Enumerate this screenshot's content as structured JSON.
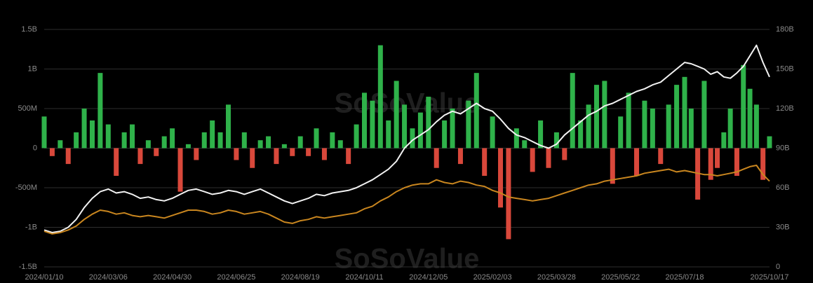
{
  "chart_data": {
    "type": "bar",
    "watermark": "SoSoValue",
    "categories": [
      "2024/01/10",
      null,
      null,
      null,
      null,
      null,
      null,
      null,
      "2024/03/06",
      null,
      null,
      null,
      null,
      null,
      null,
      null,
      "2024/04/30",
      null,
      null,
      null,
      null,
      null,
      null,
      null,
      "2024/06/25",
      null,
      null,
      null,
      null,
      null,
      null,
      null,
      "2024/08/19",
      null,
      null,
      null,
      null,
      null,
      null,
      null,
      "2024/10/11",
      null,
      null,
      null,
      null,
      null,
      null,
      null,
      "2024/12/05",
      null,
      null,
      null,
      null,
      null,
      null,
      null,
      "2025/02/03",
      null,
      null,
      null,
      null,
      null,
      null,
      null,
      "2025/03/28",
      null,
      null,
      null,
      null,
      null,
      null,
      null,
      "2025/05/22",
      null,
      null,
      null,
      null,
      null,
      null,
      null,
      "2025/07/18",
      null,
      null,
      null,
      null,
      null,
      null,
      null,
      null,
      null,
      null,
      null,
      null,
      "2025/10/17"
    ],
    "values": [
      400,
      -100,
      100,
      -200,
      200,
      500,
      350,
      950,
      300,
      -350,
      200,
      300,
      -200,
      100,
      -100,
      150,
      250,
      -550,
      50,
      -150,
      200,
      350,
      200,
      550,
      -150,
      200,
      -250,
      100,
      150,
      -200,
      50,
      -100,
      150,
      -100,
      250,
      -150,
      200,
      100,
      -200,
      300,
      700,
      600,
      1300,
      350,
      850,
      550,
      250,
      450,
      650,
      -250,
      350,
      500,
      -200,
      600,
      950,
      -350,
      400,
      -750,
      -1150,
      250,
      100,
      -300,
      350,
      -250,
      200,
      -150,
      950,
      350,
      550,
      800,
      850,
      -450,
      400,
      700,
      -350,
      600,
      500,
      -200,
      550,
      800,
      900,
      500,
      -650,
      850,
      -400,
      -250,
      200,
      500,
      -350,
      1050,
      750,
      550,
      -400,
      150
    ],
    "color": "#2fb24a",
    "negative_color": "#d9483b",
    "series": [
      {
        "type": "line",
        "axis": "y2",
        "color": "#f2f2f2",
        "values": [
          28,
          26,
          27,
          30,
          36,
          45,
          52,
          57,
          59,
          56,
          57,
          55,
          52,
          53,
          51,
          50,
          52,
          55,
          58,
          59,
          57,
          55,
          56,
          58,
          57,
          55,
          57,
          59,
          56,
          53,
          50,
          48,
          50,
          52,
          55,
          54,
          56,
          57,
          58,
          60,
          63,
          66,
          70,
          74,
          80,
          90,
          96,
          100,
          104,
          110,
          115,
          118,
          116,
          120,
          124,
          120,
          118,
          112,
          105,
          100,
          98,
          95,
          92,
          90,
          93,
          100,
          105,
          110,
          115,
          118,
          122,
          124,
          127,
          130,
          133,
          135,
          138,
          140,
          145,
          150,
          155,
          154,
          152,
          150,
          146,
          148,
          144,
          143,
          147,
          152,
          160,
          168,
          155,
          144
        ]
      },
      {
        "type": "line",
        "axis": "y2",
        "color": "#c9861f",
        "values": [
          27,
          25,
          26,
          28,
          31,
          36,
          40,
          43,
          42,
          40,
          41,
          39,
          38,
          39,
          38,
          37,
          39,
          41,
          43,
          43,
          42,
          40,
          41,
          43,
          42,
          40,
          41,
          42,
          40,
          37,
          34,
          33,
          35,
          36,
          38,
          37,
          38,
          39,
          40,
          41,
          44,
          46,
          50,
          53,
          57,
          60,
          62,
          63,
          63,
          66,
          64,
          63,
          65,
          64,
          62,
          61,
          58,
          56,
          53,
          52,
          51,
          50,
          51,
          52,
          54,
          56,
          58,
          60,
          62,
          63,
          65,
          66,
          67,
          68,
          69,
          71,
          72,
          73,
          74,
          72,
          73,
          72,
          71,
          70,
          70,
          69,
          70,
          71,
          72,
          74,
          76,
          77,
          70,
          65
        ]
      }
    ],
    "ylim": [
      -1500,
      1500
    ],
    "yticks": [
      {
        "value": -1500,
        "label": "-1.5B"
      },
      {
        "value": -1000,
        "label": "-1B"
      },
      {
        "value": -500,
        "label": "-500M"
      },
      0,
      {
        "value": 500,
        "label": "500M"
      },
      {
        "value": 1000,
        "label": "1B"
      },
      {
        "value": 1500,
        "label": "1.5B"
      }
    ],
    "y2lim": [
      0,
      180
    ],
    "y2ticks": [
      0,
      {
        "value": 30,
        "label": "30B"
      },
      {
        "value": 60,
        "label": "60B"
      },
      {
        "value": 90,
        "label": "90B"
      },
      {
        "value": 120,
        "label": "120B"
      },
      {
        "value": 150,
        "label": "150B"
      },
      {
        "value": 180,
        "label": "180B"
      }
    ],
    "grid": true
  }
}
